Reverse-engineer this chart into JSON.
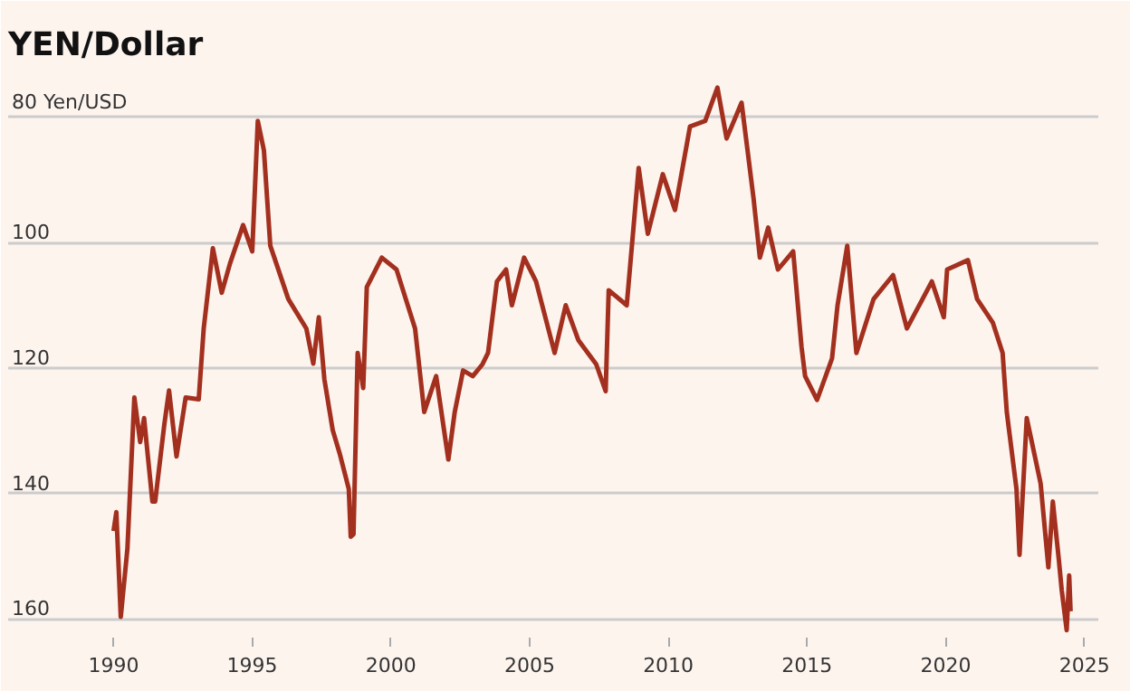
{
  "chart_data": {
    "type": "line",
    "title": "YEN/Dollar",
    "x": [
      1990.0,
      1990.1,
      1990.26,
      1990.5,
      1990.75,
      1990.96,
      1991.1,
      1991.4,
      1991.5,
      1991.83,
      1992.0,
      1992.27,
      1992.6,
      1993.07,
      1993.25,
      1993.58,
      1993.9,
      1994.2,
      1994.67,
      1995.0,
      1995.2,
      1995.42,
      1995.65,
      1996.3,
      1996.95,
      1997.2,
      1997.4,
      1997.6,
      1997.9,
      1998.15,
      1998.48,
      1998.55,
      1998.65,
      1998.8,
      1999.0,
      1999.13,
      1999.67,
      2000.2,
      2000.87,
      2001.2,
      2001.63,
      2002.07,
      2002.3,
      2002.6,
      2002.95,
      2003.3,
      2003.5,
      2003.82,
      2004.15,
      2004.36,
      2004.8,
      2005.23,
      2005.67,
      2005.9,
      2006.3,
      2006.76,
      2007.4,
      2007.74,
      2007.85,
      2008.5,
      2008.93,
      2009.26,
      2009.8,
      2010.24,
      2010.78,
      2011.33,
      2011.77,
      2012.1,
      2012.64,
      2013.07,
      2013.3,
      2013.6,
      2013.95,
      2014.5,
      2014.8,
      2014.93,
      2015.36,
      2015.9,
      2016.1,
      2016.45,
      2016.78,
      2017.4,
      2018.1,
      2018.6,
      2019.5,
      2019.93,
      2020.05,
      2020.8,
      2021.13,
      2021.7,
      2022.05,
      2022.2,
      2022.55,
      2022.66,
      2022.92,
      2023.42,
      2023.7,
      2023.86,
      2024.08,
      2024.18,
      2024.36,
      2024.45,
      2024.5
    ],
    "series": [
      {
        "color": "#a3301f",
        "values": [
          146,
          143,
          159.7,
          148.8,
          124.7,
          131.8,
          128,
          141.3,
          141.3,
          129,
          123.6,
          134.1,
          124.7,
          125,
          113.7,
          100.9,
          108,
          103.3,
          97.2,
          101.4,
          80.6,
          85.3,
          100.5,
          109,
          113.7,
          119.3,
          111.9,
          121.8,
          129.9,
          133.6,
          139.3,
          146.9,
          146.5,
          117.6,
          123.2,
          107.1,
          102.4,
          104.3,
          113.7,
          127,
          121.3,
          134.6,
          127,
          120.4,
          121.3,
          119.4,
          117.6,
          106.2,
          104.3,
          110,
          102.4,
          106.2,
          113.7,
          117.6,
          110,
          115.6,
          119.4,
          123.7,
          107.6,
          110,
          88.1,
          98.6,
          89.1,
          94.8,
          81.5,
          80.6,
          75.3,
          83.4,
          77.7,
          92.9,
          102.4,
          97.6,
          104.3,
          101.4,
          116.6,
          121.3,
          125.1,
          118.5,
          110,
          100.5,
          117.6,
          109,
          105.2,
          113.7,
          106.2,
          111.9,
          104.3,
          102.8,
          109,
          112.8,
          117.6,
          127,
          139.3,
          149.8,
          128,
          138.4,
          151.8,
          141.3,
          150.7,
          155.4,
          161.8,
          153.1,
          158.8
        ]
      }
    ],
    "xlim": [
      1986.2,
      2025.5
    ],
    "ylim": [
      163,
      73
    ],
    "xticks": [
      1990,
      1995,
      2000,
      2005,
      2010,
      2015,
      2020,
      2025
    ],
    "yticks": [
      {
        "value": 80,
        "label": "80 Yen/USD"
      },
      100,
      120,
      140,
      160
    ],
    "grid": "y"
  }
}
